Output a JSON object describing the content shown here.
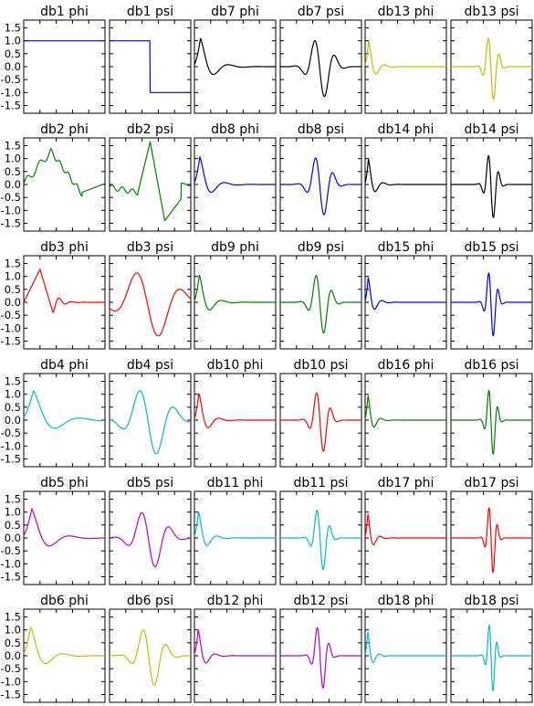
{
  "colors": {
    "b": "#0000ff",
    "g": "#008000",
    "r": "#ff0000",
    "c": "#00bfbf",
    "m": "#bf00bf",
    "y": "#bfbf00",
    "k": "#000000"
  },
  "chart_data": {
    "type": "line",
    "grid": false,
    "ylim": [
      -1.8,
      1.8
    ],
    "yticks": [
      "1.5",
      "1.0",
      "0.5",
      "0.0",
      "-0.5",
      "-1.0",
      "-1.5"
    ],
    "ytick_values": [
      1.5,
      1.0,
      0.5,
      0.0,
      -0.5,
      -1.0,
      -1.5
    ],
    "columns": 6,
    "rows": 6,
    "panels": [
      {
        "title": "db1 phi",
        "wavelet": "db1",
        "function": "phi",
        "color": "b",
        "order": 1
      },
      {
        "title": "db1 psi",
        "wavelet": "db1",
        "function": "psi",
        "color": "b",
        "order": 1
      },
      {
        "title": "db7 phi",
        "wavelet": "db7",
        "function": "phi",
        "color": "k",
        "order": 7
      },
      {
        "title": "db7 psi",
        "wavelet": "db7",
        "function": "psi",
        "color": "k",
        "order": 7
      },
      {
        "title": "db13 phi",
        "wavelet": "db13",
        "function": "phi",
        "color": "y",
        "order": 13
      },
      {
        "title": "db13 psi",
        "wavelet": "db13",
        "function": "psi",
        "color": "y",
        "order": 13
      },
      {
        "title": "db2 phi",
        "wavelet": "db2",
        "function": "phi",
        "color": "g",
        "order": 2
      },
      {
        "title": "db2 psi",
        "wavelet": "db2",
        "function": "psi",
        "color": "g",
        "order": 2
      },
      {
        "title": "db8 phi",
        "wavelet": "db8",
        "function": "phi",
        "color": "b",
        "order": 8
      },
      {
        "title": "db8 psi",
        "wavelet": "db8",
        "function": "psi",
        "color": "b",
        "order": 8
      },
      {
        "title": "db14 phi",
        "wavelet": "db14",
        "function": "phi",
        "color": "k",
        "order": 14
      },
      {
        "title": "db14 psi",
        "wavelet": "db14",
        "function": "psi",
        "color": "k",
        "order": 14
      },
      {
        "title": "db3 phi",
        "wavelet": "db3",
        "function": "phi",
        "color": "r",
        "order": 3
      },
      {
        "title": "db3 psi",
        "wavelet": "db3",
        "function": "psi",
        "color": "r",
        "order": 3
      },
      {
        "title": "db9 phi",
        "wavelet": "db9",
        "function": "phi",
        "color": "g",
        "order": 9
      },
      {
        "title": "db9 psi",
        "wavelet": "db9",
        "function": "psi",
        "color": "g",
        "order": 9
      },
      {
        "title": "db15 phi",
        "wavelet": "db15",
        "function": "phi",
        "color": "b",
        "order": 15
      },
      {
        "title": "db15 psi",
        "wavelet": "db15",
        "function": "psi",
        "color": "b",
        "order": 15
      },
      {
        "title": "db4 phi",
        "wavelet": "db4",
        "function": "phi",
        "color": "c",
        "order": 4
      },
      {
        "title": "db4 psi",
        "wavelet": "db4",
        "function": "psi",
        "color": "c",
        "order": 4
      },
      {
        "title": "db10 phi",
        "wavelet": "db10",
        "function": "phi",
        "color": "r",
        "order": 10
      },
      {
        "title": "db10 psi",
        "wavelet": "db10",
        "function": "psi",
        "color": "r",
        "order": 10
      },
      {
        "title": "db16 phi",
        "wavelet": "db16",
        "function": "phi",
        "color": "g",
        "order": 16
      },
      {
        "title": "db16 psi",
        "wavelet": "db16",
        "function": "psi",
        "color": "g",
        "order": 16
      },
      {
        "title": "db5 phi",
        "wavelet": "db5",
        "function": "phi",
        "color": "m",
        "order": 5
      },
      {
        "title": "db5 psi",
        "wavelet": "db5",
        "function": "psi",
        "color": "m",
        "order": 5
      },
      {
        "title": "db11 phi",
        "wavelet": "db11",
        "function": "phi",
        "color": "c",
        "order": 11
      },
      {
        "title": "db11 psi",
        "wavelet": "db11",
        "function": "psi",
        "color": "c",
        "order": 11
      },
      {
        "title": "db17 phi",
        "wavelet": "db17",
        "function": "phi",
        "color": "r",
        "order": 17
      },
      {
        "title": "db17 psi",
        "wavelet": "db17",
        "function": "psi",
        "color": "r",
        "order": 17
      },
      {
        "title": "db6 phi",
        "wavelet": "db6",
        "function": "phi",
        "color": "y",
        "order": 6
      },
      {
        "title": "db6 psi",
        "wavelet": "db6",
        "function": "psi",
        "color": "y",
        "order": 6
      },
      {
        "title": "db12 phi",
        "wavelet": "db12",
        "function": "phi",
        "color": "m",
        "order": 12
      },
      {
        "title": "db12 psi",
        "wavelet": "db12",
        "function": "psi",
        "color": "m",
        "order": 12
      },
      {
        "title": "db18 phi",
        "wavelet": "db18",
        "function": "phi",
        "color": "c",
        "order": 18
      },
      {
        "title": "db18 psi",
        "wavelet": "db18",
        "function": "psi",
        "color": "c",
        "order": 18
      }
    ]
  }
}
